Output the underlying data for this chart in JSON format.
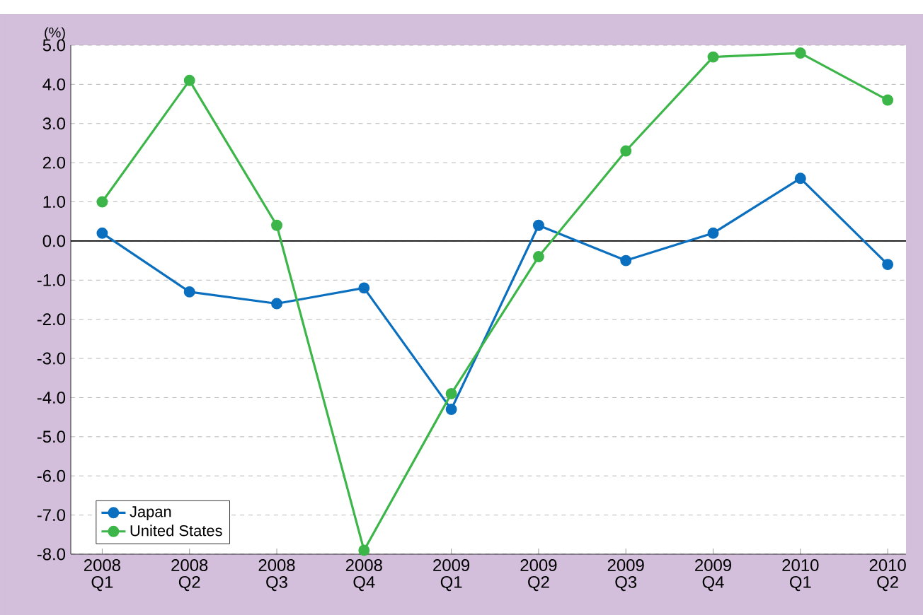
{
  "chart_data": {
    "type": "line",
    "ylabel": "(%)",
    "categories": [
      "2008 Q1",
      "2008 Q2",
      "2008 Q3",
      "2008 Q4",
      "2009 Q1",
      "2009 Q2",
      "2009 Q3",
      "2009 Q4",
      "2010 Q1",
      "2010 Q2"
    ],
    "series": [
      {
        "name": "Japan",
        "color": "#0a6fbf",
        "values": [
          0.2,
          -1.3,
          -1.6,
          -1.2,
          -4.3,
          0.4,
          -0.5,
          0.2,
          1.6,
          -0.6
        ]
      },
      {
        "name": "United States",
        "color": "#3cb549",
        "values": [
          1.0,
          4.1,
          0.4,
          -7.9,
          -3.9,
          -0.4,
          2.3,
          4.7,
          4.8,
          3.6
        ]
      }
    ],
    "ylim": [
      -8,
      5
    ],
    "yticks": [
      {
        "value": -8,
        "label": "-8.0"
      },
      {
        "value": -7,
        "label": "-7.0"
      },
      {
        "value": -6,
        "label": "-6.0"
      },
      {
        "value": -5,
        "label": "-5.0"
      },
      {
        "value": -4,
        "label": "-4.0"
      },
      {
        "value": -3,
        "label": "-3.0"
      },
      {
        "value": -2,
        "label": "-2.0"
      },
      {
        "value": -1,
        "label": "-1.0"
      },
      {
        "value": 0,
        "label": "0.0"
      },
      {
        "value": 1,
        "label": "1.0"
      },
      {
        "value": 2,
        "label": "2.0"
      },
      {
        "value": 3,
        "label": "3.0"
      },
      {
        "value": 4,
        "label": "4.0"
      },
      {
        "value": 5,
        "label": "5.0"
      }
    ],
    "ref_lines": [
      {
        "axis": "y",
        "value": 0,
        "color": "#000000"
      }
    ],
    "grid": "y",
    "legend": "bottom left",
    "marker": "circle",
    "line_style": "solid"
  }
}
